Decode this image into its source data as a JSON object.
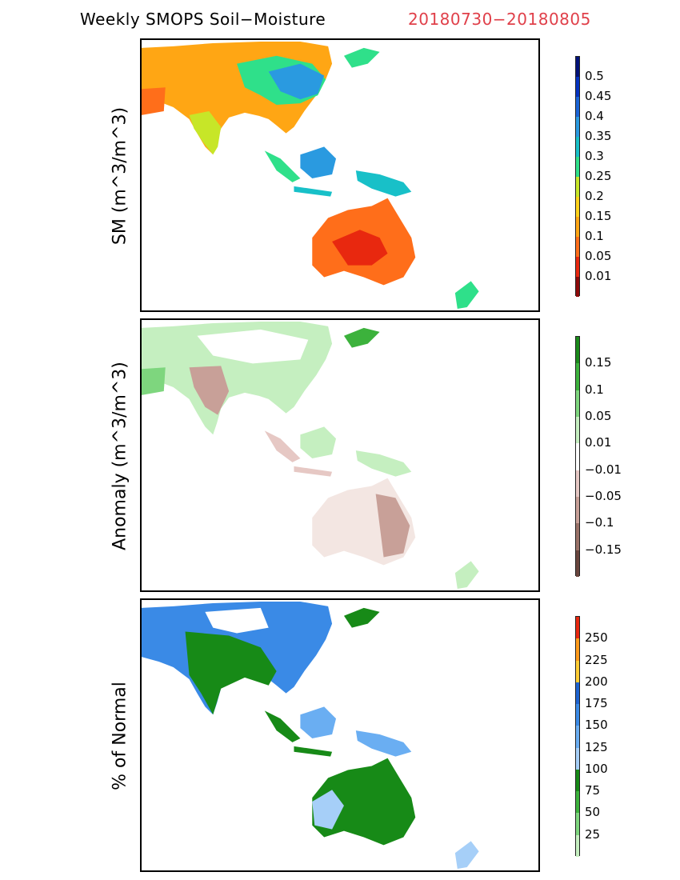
{
  "header": {
    "title": "Weekly SMOPS Soil−Moisture",
    "dates": "20180730−20180805"
  },
  "panels": [
    {
      "ylabel": "SM (m^3/m^3)",
      "legend": {
        "labels": [
          "0.5",
          "0.45",
          "0.4",
          "0.35",
          "0.3",
          "0.25",
          "0.2",
          "0.15",
          "0.1",
          "0.05",
          "0.01"
        ],
        "colors": [
          "#00127a",
          "#0533c0",
          "#1a64d6",
          "#2a9ae0",
          "#18c0c8",
          "#2fe08a",
          "#c7e628",
          "#ffd21a",
          "#ffa614",
          "#ff6e1a",
          "#e8280f",
          "#8e0a0a"
        ]
      }
    },
    {
      "ylabel": "Anomaly (m^3/m^3)",
      "legend": {
        "labels": [
          "0.15",
          "0.1",
          "0.05",
          "0.01",
          "−0.01",
          "−0.05",
          "−0.1",
          "−0.15"
        ],
        "colors": [
          "#1a8a1a",
          "#3cb23c",
          "#7ed67e",
          "#c5efc0",
          "#ffffff",
          "#e6c8c4",
          "#c8a098",
          "#9a7268",
          "#6a463e"
        ]
      }
    },
    {
      "ylabel": "% of Normal",
      "legend": {
        "labels": [
          "250",
          "225",
          "200",
          "175",
          "150",
          "125",
          "100",
          "75",
          "50",
          "25"
        ],
        "colors": [
          "#e8280f",
          "#ff9a1a",
          "#ffcc33",
          "#1d63d0",
          "#3a8ae6",
          "#6aaef2",
          "#a6cff8",
          "#178a17",
          "#3cb23c",
          "#7ed67e",
          "#c5efc0"
        ]
      }
    }
  ]
}
